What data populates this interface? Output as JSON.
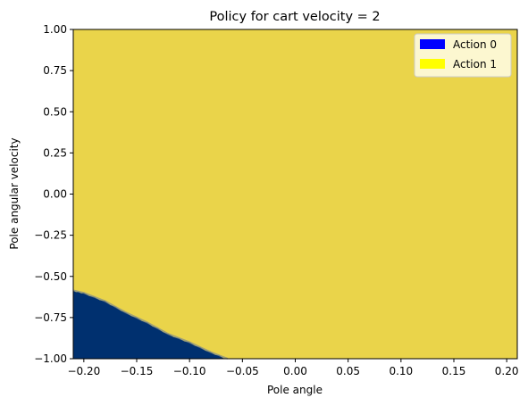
{
  "chart_data": {
    "type": "heatmap",
    "title": "Policy for cart velocity = 2",
    "xlabel": "Pole angle",
    "ylabel": "Pole angular velocity",
    "xlim": [
      -0.21,
      0.21
    ],
    "ylim": [
      -1.0,
      1.0
    ],
    "xticks": [
      "−0.20",
      "−0.15",
      "−0.10",
      "−0.05",
      "0.00",
      "0.05",
      "0.10",
      "0.15",
      "0.20"
    ],
    "xtick_values": [
      -0.2,
      -0.15,
      -0.1,
      -0.05,
      0.0,
      0.05,
      0.1,
      0.15,
      0.2
    ],
    "yticks": [
      "−1.00",
      "−0.75",
      "−0.50",
      "−0.25",
      "0.00",
      "0.25",
      "0.50",
      "0.75",
      "1.00"
    ],
    "ytick_values": [
      -1.0,
      -0.75,
      -0.5,
      -0.25,
      0.0,
      0.25,
      0.5,
      0.75,
      1.0
    ],
    "grid": false,
    "legend_position": "top-right",
    "legend": [
      {
        "label": "Action 0",
        "color": "#0000ff"
      },
      {
        "label": "Action 1",
        "color": "#ffff00"
      }
    ],
    "regions": [
      {
        "action": "Action 1",
        "color": "#ead44a",
        "description": "background"
      },
      {
        "action": "Action 0",
        "color": "#00306f",
        "boundary": [
          [
            -0.21,
            -0.585
          ],
          [
            -0.2,
            -0.6
          ],
          [
            -0.18,
            -0.65
          ],
          [
            -0.16,
            -0.72
          ],
          [
            -0.14,
            -0.78
          ],
          [
            -0.12,
            -0.85
          ],
          [
            -0.1,
            -0.9
          ],
          [
            -0.08,
            -0.96
          ],
          [
            -0.064,
            -1.0
          ]
        ]
      }
    ]
  }
}
